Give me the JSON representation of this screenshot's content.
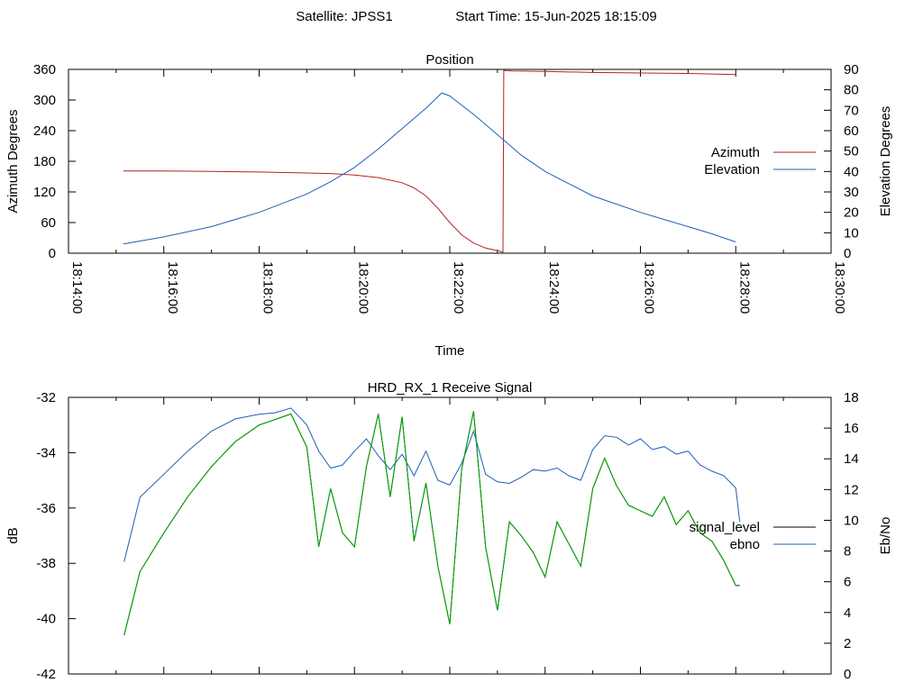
{
  "header": {
    "satellite": "Satellite: JPSS1",
    "start_time": "Start Time: 15-Jun-2025 18:15:09"
  },
  "colors": {
    "azimuth": "#b22222",
    "elevation": "#1f5fb4",
    "signal_level": "#000000",
    "ebno": "#1f5fb4",
    "green_trace": "#00aa00"
  },
  "chart_data": [
    {
      "type": "line",
      "title": "Position",
      "xlabel": "Time",
      "ylabel": "Azimuth Degrees",
      "y2label": "Elevation Degrees",
      "xlim": [
        "18:14:00",
        "18:30:00"
      ],
      "x_ticks": [
        "18:14:00",
        "18:16:00",
        "18:18:00",
        "18:20:00",
        "18:22:00",
        "18:24:00",
        "18:26:00",
        "18:28:00",
        "18:30:00"
      ],
      "ylim": [
        0,
        360
      ],
      "y_ticks": [
        "0",
        "60",
        "120",
        "180",
        "240",
        "300",
        "360"
      ],
      "y2lim": [
        0,
        90
      ],
      "y2_ticks": [
        "0",
        "10",
        "20",
        "30",
        "40",
        "50",
        "60",
        "70",
        "80",
        "90"
      ],
      "legend_position": "right",
      "series": [
        {
          "name": "Azimuth",
          "axis": "left",
          "x": [
            "18:15:09",
            "18:16:00",
            "18:17:00",
            "18:18:00",
            "18:19:00",
            "18:19:30",
            "18:20:00",
            "18:20:30",
            "18:21:00",
            "18:21:15",
            "18:21:30",
            "18:21:45",
            "18:22:00",
            "18:22:15",
            "18:22:30",
            "18:22:45",
            "18:23:00",
            "18:23:07",
            "18:23:08",
            "18:23:20",
            "18:24:00",
            "18:25:00",
            "18:26:00",
            "18:27:00",
            "18:28:00"
          ],
          "values": [
            161,
            161,
            160,
            159,
            157,
            156,
            153,
            148,
            138,
            128,
            112,
            88,
            60,
            36,
            20,
            10,
            5,
            2,
            358,
            357,
            356,
            354,
            353,
            352,
            350
          ]
        },
        {
          "name": "Elevation",
          "axis": "right",
          "x": [
            "18:15:09",
            "18:16:00",
            "18:17:00",
            "18:18:00",
            "18:19:00",
            "18:19:30",
            "18:20:00",
            "18:20:30",
            "18:21:00",
            "18:21:30",
            "18:21:50",
            "18:22:00",
            "18:22:30",
            "18:23:00",
            "18:23:30",
            "18:24:00",
            "18:24:30",
            "18:25:00",
            "18:25:30",
            "18:26:00",
            "18:26:30",
            "18:27:00",
            "18:27:30",
            "18:28:00"
          ],
          "values": [
            4.5,
            8,
            13,
            20,
            29,
            35,
            42,
            51,
            61,
            71,
            78.5,
            77,
            68,
            58,
            48,
            40,
            34,
            28,
            24,
            20,
            16.5,
            13,
            9.5,
            5.5
          ]
        }
      ]
    },
    {
      "type": "line",
      "title": "HRD_RX_1 Receive Signal",
      "xlabel": "",
      "ylabel": "dB",
      "y2label": "Eb/No",
      "xlim": [
        "18:14:00",
        "18:30:00"
      ],
      "ylim": [
        -42,
        -32
      ],
      "y_ticks": [
        "-42",
        "-40",
        "-38",
        "-36",
        "-34",
        "-32"
      ],
      "y2lim": [
        0,
        18
      ],
      "y2_ticks": [
        "0",
        "2",
        "4",
        "6",
        "8",
        "10",
        "12",
        "14",
        "16",
        "18"
      ],
      "legend_position": "right",
      "series": [
        {
          "name": "signal_level",
          "axis": "left",
          "x": [
            "18:15:10",
            "18:15:30",
            "18:16:00",
            "18:16:30",
            "18:17:00",
            "18:17:30",
            "18:18:00",
            "18:18:20",
            "18:18:40",
            "18:19:00",
            "18:19:15",
            "18:19:30",
            "18:19:45",
            "18:20:00",
            "18:20:15",
            "18:20:30",
            "18:20:45",
            "18:21:00",
            "18:21:15",
            "18:21:30",
            "18:21:45",
            "18:22:00",
            "18:22:15",
            "18:22:30",
            "18:22:45",
            "18:23:00",
            "18:23:15",
            "18:23:30",
            "18:23:45",
            "18:24:00",
            "18:24:15",
            "18:24:30",
            "18:24:45",
            "18:25:00",
            "18:25:15",
            "18:25:30",
            "18:25:45",
            "18:26:00",
            "18:26:15",
            "18:26:30",
            "18:26:45",
            "18:27:00",
            "18:27:15",
            "18:27:30",
            "18:27:45",
            "18:28:00",
            "18:28:05"
          ],
          "values": [
            -40.6,
            -38.3,
            -36.9,
            -35.6,
            -34.5,
            -33.6,
            -33.0,
            -32.8,
            -32.6,
            -33.8,
            -37.4,
            -35.3,
            -36.9,
            -37.4,
            -34.5,
            -32.6,
            -35.6,
            -32.7,
            -37.2,
            -35.1,
            -38.1,
            -40.2,
            -34.6,
            -32.5,
            -37.4,
            -39.7,
            -36.5,
            -37.0,
            -37.6,
            -38.5,
            -36.5,
            -37.3,
            -38.1,
            -35.3,
            -34.2,
            -35.2,
            -35.9,
            -36.1,
            -36.3,
            -35.6,
            -36.6,
            -36.1,
            -36.9,
            -37.2,
            -37.9,
            -38.8,
            -38.8
          ]
        },
        {
          "name": "ebno",
          "axis": "right",
          "x": [
            "18:15:10",
            "18:15:30",
            "18:16:00",
            "18:16:30",
            "18:17:00",
            "18:17:30",
            "18:18:00",
            "18:18:20",
            "18:18:40",
            "18:19:00",
            "18:19:15",
            "18:19:30",
            "18:19:45",
            "18:20:00",
            "18:20:15",
            "18:20:30",
            "18:20:45",
            "18:21:00",
            "18:21:15",
            "18:21:30",
            "18:21:45",
            "18:22:00",
            "18:22:15",
            "18:22:30",
            "18:22:45",
            "18:23:00",
            "18:23:15",
            "18:23:30",
            "18:23:45",
            "18:24:00",
            "18:24:15",
            "18:24:30",
            "18:24:45",
            "18:25:00",
            "18:25:15",
            "18:25:30",
            "18:25:45",
            "18:26:00",
            "18:26:15",
            "18:26:30",
            "18:26:45",
            "18:27:00",
            "18:27:15",
            "18:27:30",
            "18:27:45",
            "18:28:00",
            "18:28:05"
          ],
          "values": [
            7.3,
            11.5,
            13.0,
            14.5,
            15.8,
            16.6,
            16.9,
            17.0,
            17.3,
            16.2,
            14.5,
            13.4,
            13.6,
            14.5,
            15.3,
            14.2,
            13.3,
            14.3,
            12.9,
            14.5,
            12.6,
            12.3,
            13.7,
            15.8,
            13.0,
            12.5,
            12.4,
            12.8,
            13.3,
            13.2,
            13.4,
            12.9,
            12.6,
            14.6,
            15.5,
            15.4,
            14.9,
            15.3,
            14.6,
            14.8,
            14.3,
            14.5,
            13.6,
            13.2,
            12.9,
            12.1,
            9.9
          ]
        }
      ]
    }
  ]
}
